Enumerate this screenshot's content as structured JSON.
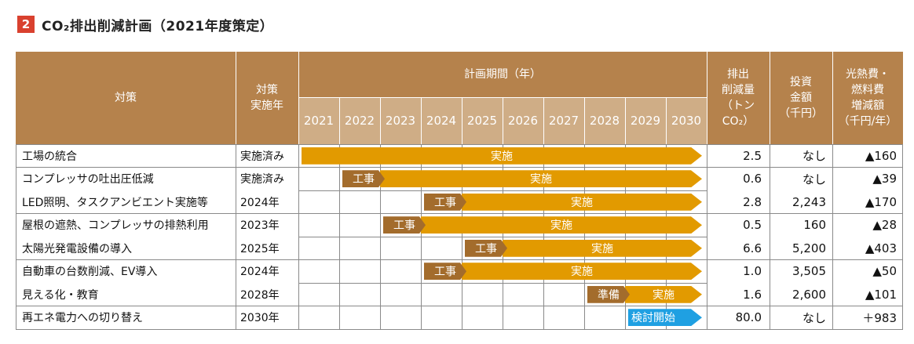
{
  "title": {
    "number": "2",
    "text": "CO₂排出削減計画（2021年度策定）"
  },
  "headers": {
    "measure": "対策",
    "impl_year": "対策\n実施年",
    "plan_period": "計画期間（年）",
    "reduction": "排出\n削減量\n（トン\nCO₂）",
    "investment": "投資\n金額\n（千円）",
    "savings": "光熱費・\n燃料費\n増減額\n（千円/年）"
  },
  "years": [
    "2021",
    "2022",
    "2023",
    "2024",
    "2025",
    "2026",
    "2027",
    "2028",
    "2029",
    "2030"
  ],
  "rows": [
    {
      "measure": "工場の統合",
      "year": "実施済み",
      "reduction": "2.5",
      "investment": "なし",
      "savings": "▲160",
      "tag": null,
      "tag_start": null,
      "bar_label": "実施",
      "bar_start": 0,
      "bar_color": "orange"
    },
    {
      "measure": "コンプレッサの吐出圧低減",
      "year": "実施済み",
      "reduction": "0.6",
      "investment": "なし",
      "savings": "▲39",
      "tag": "工事",
      "tag_start": 1,
      "bar_label": "実施",
      "bar_start": 2,
      "bar_color": "orange"
    },
    {
      "measure": "LED照明、タスクアンビエント実施等",
      "year": "2024年",
      "reduction": "2.8",
      "investment": "2,243",
      "savings": "▲170",
      "tag": "工事",
      "tag_start": 3,
      "bar_label": "実施",
      "bar_start": 4,
      "bar_color": "orange"
    },
    {
      "measure": "屋根の遮熱、コンプレッサの排熱利用",
      "year": "2023年",
      "reduction": "0.5",
      "investment": "160",
      "savings": "▲28",
      "tag": "工事",
      "tag_start": 2,
      "bar_label": "実施",
      "bar_start": 3,
      "bar_color": "orange"
    },
    {
      "measure": "太陽光発電設備の導入",
      "year": "2025年",
      "reduction": "6.6",
      "investment": "5,200",
      "savings": "▲403",
      "tag": "工事",
      "tag_start": 4,
      "bar_label": "実施",
      "bar_start": 5,
      "bar_color": "orange"
    },
    {
      "measure": "自動車の台数削減、EV導入",
      "year": "2024年",
      "reduction": "1.0",
      "investment": "3,505",
      "savings": "▲50",
      "tag": "工事",
      "tag_start": 3,
      "bar_label": "実施",
      "bar_start": 4,
      "bar_color": "orange"
    },
    {
      "measure": "見える化・教育",
      "year": "2028年",
      "reduction": "1.6",
      "investment": "2,600",
      "savings": "▲101",
      "tag": "準備",
      "tag_start": 7,
      "bar_label": "実施",
      "bar_start": 8,
      "bar_color": "orange"
    },
    {
      "measure": "再エネ電力への切り替え",
      "year": "2030年",
      "reduction": "80.0",
      "investment": "なし",
      "savings": "＋983",
      "tag": null,
      "tag_start": null,
      "bar_label": "検討開始",
      "bar_start": 8,
      "bar_color": "blue"
    }
  ],
  "colors": {
    "header": "#b5824c",
    "year_header": "#cfad86",
    "bar_orange": "#e29a00",
    "bar_blue": "#1fa0e2",
    "tag": "#a36c2c",
    "title_badge": "#d9412f"
  }
}
